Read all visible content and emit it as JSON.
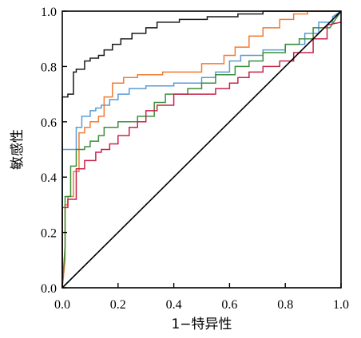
{
  "chart_data": {
    "type": "line",
    "xlabel": "1−特异性",
    "ylabel": "敏感性",
    "xlim": [
      0,
      1
    ],
    "ylim": [
      0,
      1
    ],
    "xticks": [
      "0.0",
      "0.2",
      "0.4",
      "0.6",
      "0.8",
      "1.0"
    ],
    "yticks": [
      "0.0",
      "0.2",
      "0.4",
      "0.6",
      "0.8",
      "1.0"
    ],
    "grid": false,
    "legend": "none",
    "reference_line": {
      "x": [
        0,
        1
      ],
      "y": [
        0,
        1
      ],
      "color": "#000000"
    },
    "series": [
      {
        "color": "#1a1a1a",
        "x": [
          0,
          0,
          0.02,
          0.02,
          0.04,
          0.04,
          0.05,
          0.05,
          0.08,
          0.08,
          0.1,
          0.1,
          0.13,
          0.13,
          0.15,
          0.15,
          0.18,
          0.18,
          0.21,
          0.21,
          0.25,
          0.25,
          0.3,
          0.3,
          0.34,
          0.34,
          0.42,
          0.42,
          0.52,
          0.52,
          0.63,
          0.63,
          0.72,
          0.72,
          1.0
        ],
        "y": [
          0,
          0.69,
          0.69,
          0.7,
          0.7,
          0.78,
          0.78,
          0.79,
          0.79,
          0.82,
          0.82,
          0.83,
          0.83,
          0.84,
          0.84,
          0.86,
          0.86,
          0.88,
          0.88,
          0.9,
          0.9,
          0.92,
          0.92,
          0.94,
          0.94,
          0.96,
          0.96,
          0.97,
          0.97,
          0.98,
          0.98,
          0.99,
          0.99,
          1.0,
          1.0
        ]
      },
      {
        "color": "#5b9bd5",
        "x": [
          0,
          0,
          0.02,
          0.02,
          0.05,
          0.05,
          0.07,
          0.07,
          0.1,
          0.1,
          0.12,
          0.12,
          0.14,
          0.14,
          0.17,
          0.17,
          0.2,
          0.2,
          0.24,
          0.24,
          0.3,
          0.3,
          0.4,
          0.4,
          0.5,
          0.5,
          0.55,
          0.55,
          0.6,
          0.6,
          0.64,
          0.64,
          0.72,
          0.72,
          0.8,
          0.8,
          0.87,
          0.87,
          0.92,
          0.92,
          0.97,
          0.97,
          1.0
        ],
        "y": [
          0,
          0.5,
          0.5,
          0.5,
          0.5,
          0.58,
          0.58,
          0.62,
          0.62,
          0.64,
          0.64,
          0.65,
          0.65,
          0.66,
          0.66,
          0.68,
          0.68,
          0.7,
          0.7,
          0.72,
          0.72,
          0.73,
          0.73,
          0.74,
          0.74,
          0.76,
          0.76,
          0.78,
          0.78,
          0.82,
          0.82,
          0.84,
          0.84,
          0.86,
          0.86,
          0.88,
          0.88,
          0.92,
          0.92,
          0.96,
          0.96,
          0.98,
          1.0
        ]
      },
      {
        "color": "#f07c33",
        "x": [
          0,
          0.01,
          0.01,
          0.02,
          0.02,
          0.04,
          0.04,
          0.06,
          0.06,
          0.08,
          0.08,
          0.1,
          0.1,
          0.13,
          0.13,
          0.15,
          0.15,
          0.18,
          0.18,
          0.22,
          0.22,
          0.27,
          0.27,
          0.36,
          0.36,
          0.5,
          0.5,
          0.58,
          0.58,
          0.62,
          0.62,
          0.67,
          0.67,
          0.72,
          0.72,
          0.78,
          0.78,
          0.83,
          0.83,
          0.88,
          0.88,
          0.95,
          1.0
        ],
        "y": [
          0,
          0.1,
          0.3,
          0.3,
          0.33,
          0.33,
          0.42,
          0.42,
          0.56,
          0.56,
          0.58,
          0.58,
          0.6,
          0.6,
          0.62,
          0.62,
          0.69,
          0.69,
          0.74,
          0.74,
          0.76,
          0.76,
          0.77,
          0.77,
          0.78,
          0.78,
          0.81,
          0.81,
          0.84,
          0.84,
          0.87,
          0.87,
          0.91,
          0.91,
          0.94,
          0.94,
          0.97,
          0.97,
          0.99,
          0.99,
          1.0,
          1.0,
          1.0
        ]
      },
      {
        "color": "#3a8f3a",
        "x": [
          0,
          0.01,
          0.01,
          0.03,
          0.03,
          0.05,
          0.05,
          0.08,
          0.08,
          0.1,
          0.1,
          0.13,
          0.13,
          0.15,
          0.15,
          0.2,
          0.2,
          0.27,
          0.27,
          0.33,
          0.33,
          0.37,
          0.37,
          0.45,
          0.45,
          0.5,
          0.5,
          0.55,
          0.55,
          0.62,
          0.62,
          0.67,
          0.67,
          0.72,
          0.72,
          0.8,
          0.8,
          0.85,
          0.85,
          0.9,
          0.9,
          0.96,
          1.0
        ],
        "y": [
          0,
          0.15,
          0.33,
          0.33,
          0.44,
          0.44,
          0.5,
          0.5,
          0.51,
          0.51,
          0.53,
          0.53,
          0.55,
          0.55,
          0.58,
          0.58,
          0.6,
          0.6,
          0.62,
          0.62,
          0.67,
          0.67,
          0.7,
          0.7,
          0.72,
          0.72,
          0.74,
          0.74,
          0.77,
          0.77,
          0.8,
          0.8,
          0.82,
          0.82,
          0.85,
          0.85,
          0.88,
          0.88,
          0.9,
          0.9,
          0.94,
          0.94,
          1.0
        ]
      },
      {
        "color": "#c8234a",
        "x": [
          0,
          0,
          0.02,
          0.02,
          0.05,
          0.05,
          0.08,
          0.08,
          0.12,
          0.12,
          0.14,
          0.14,
          0.17,
          0.17,
          0.2,
          0.2,
          0.24,
          0.24,
          0.27,
          0.27,
          0.3,
          0.3,
          0.34,
          0.34,
          0.4,
          0.4,
          0.55,
          0.55,
          0.6,
          0.6,
          0.63,
          0.63,
          0.67,
          0.67,
          0.72,
          0.72,
          0.78,
          0.78,
          0.83,
          0.83,
          0.9,
          0.9,
          0.95,
          0.95,
          1.0
        ],
        "y": [
          0,
          0.29,
          0.29,
          0.32,
          0.32,
          0.43,
          0.43,
          0.46,
          0.46,
          0.49,
          0.49,
          0.5,
          0.5,
          0.52,
          0.52,
          0.55,
          0.55,
          0.58,
          0.58,
          0.6,
          0.6,
          0.64,
          0.64,
          0.66,
          0.66,
          0.7,
          0.7,
          0.72,
          0.72,
          0.74,
          0.74,
          0.76,
          0.76,
          0.78,
          0.78,
          0.8,
          0.8,
          0.82,
          0.82,
          0.85,
          0.85,
          0.9,
          0.9,
          0.95,
          0.96
        ]
      }
    ]
  }
}
